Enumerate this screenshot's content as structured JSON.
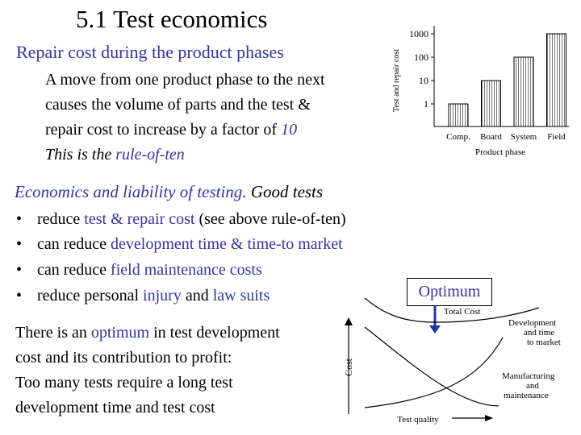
{
  "slide": {
    "title": "5.1 Test economics",
    "subtitle": "Repair cost during the product phases",
    "para": {
      "line1": "A move from one product phase to the next",
      "line2": "causes the volume of parts and the test &",
      "line3_a": "repair cost to increase by a factor of ",
      "line3_b": "10",
      "line4_a": "This is the ",
      "line4_b": "rule-of-ten"
    },
    "section2": {
      "a": "Economics and liability of testing.",
      "b": " Good tests"
    },
    "bullets": [
      {
        "parts": [
          "reduce ",
          "test & repair cost",
          " (see above rule-of-ten)"
        ]
      },
      {
        "parts": [
          "can reduce ",
          "development time & time-to market",
          ""
        ]
      },
      {
        "parts": [
          "can reduce ",
          "field maintenance costs",
          ""
        ]
      },
      {
        "parts": [
          "reduce personal ",
          "injury",
          " and ",
          "law suits"
        ]
      }
    ],
    "bottom": {
      "line1_a": "There is an ",
      "line1_b": "optimum",
      "line1_c": " in test development",
      "line2": "cost and its contribution to profit:",
      "line3": "Too many tests require a long test",
      "line4": "development time and test cost"
    },
    "optimum_label": "Optimum",
    "colors": {
      "accent": "#3333aa",
      "text": "#000000"
    }
  },
  "chart_data": [
    {
      "type": "bar",
      "title": "",
      "xlabel": "Product phase",
      "ylabel": "Test and repair cost",
      "yscale": "log",
      "yticks": [
        "1",
        "10",
        "100",
        "1000"
      ],
      "categories": [
        "Comp.",
        "Board",
        "System",
        "Field"
      ],
      "values": [
        1,
        10,
        100,
        1000
      ],
      "grid": false
    },
    {
      "type": "line",
      "title": "",
      "xlabel": "Test quality",
      "ylabel": "Cost",
      "series": [
        {
          "name": "Total Cost",
          "shape": "u-curve"
        },
        {
          "name": "Development and time to market",
          "shape": "increasing"
        },
        {
          "name": "Manufacturing and maintenance",
          "shape": "decreasing"
        }
      ],
      "curve_labels": {
        "total": "Total Cost",
        "dev": [
          "Development",
          "and time",
          "to market"
        ],
        "mfg": [
          "Manufacturing",
          "and",
          "maintenance"
        ]
      }
    }
  ]
}
